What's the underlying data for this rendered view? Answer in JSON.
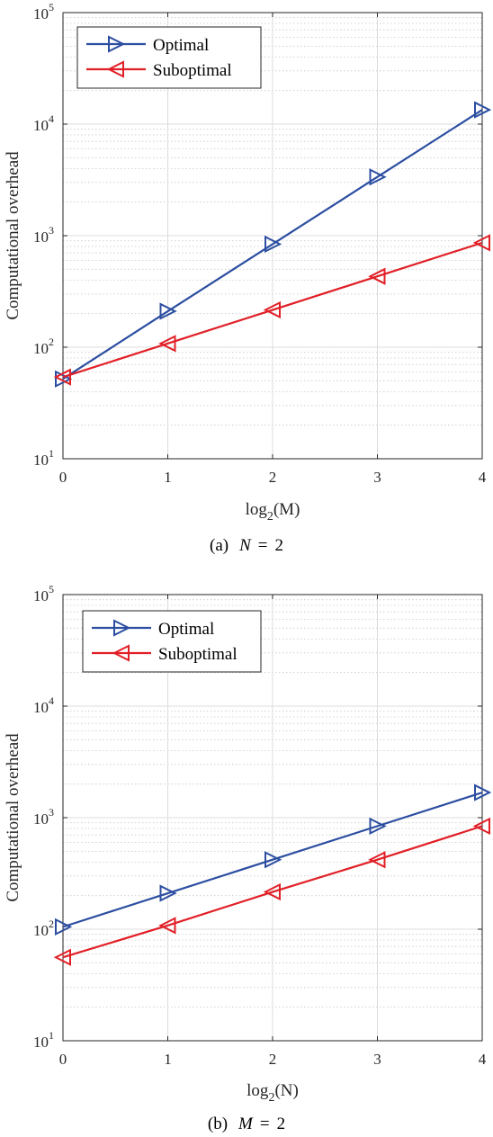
{
  "chart_data": [
    {
      "type": "line",
      "caption": "(a)",
      "caption_math": {
        "symbol": "N",
        "op": "=",
        "value": "2"
      },
      "xlabel": "log2(M)",
      "xlabel_parts": {
        "base": "log",
        "sub": "2",
        "arg": "(M)"
      },
      "ylabel": "Computational overhead",
      "xlim": [
        0,
        4
      ],
      "ylim": [
        10,
        100000
      ],
      "yscale": "log",
      "grid": true,
      "legend_position": "top-left",
      "x": [
        0,
        1,
        2,
        3,
        4
      ],
      "x_ticks": [
        "0",
        "1",
        "2",
        "3",
        "4"
      ],
      "y_ticks": [
        {
          "base": "10",
          "exp": "1"
        },
        {
          "base": "10",
          "exp": "2"
        },
        {
          "base": "10",
          "exp": "3"
        },
        {
          "base": "10",
          "exp": "4"
        },
        {
          "base": "10",
          "exp": "5"
        }
      ],
      "series": [
        {
          "name": "Optimal",
          "color": "#2c4ea1",
          "marker": "triangle-right",
          "values": [
            52,
            210,
            840,
            3360,
            13440
          ]
        },
        {
          "name": "Suboptimal",
          "color": "#e11f26",
          "marker": "triangle-left",
          "values": [
            54,
            108,
            216,
            432,
            864
          ]
        }
      ]
    },
    {
      "type": "line",
      "caption": "(b)",
      "caption_math": {
        "symbol": "M",
        "op": "=",
        "value": "2"
      },
      "xlabel": "log2(N)",
      "xlabel_parts": {
        "base": "log",
        "sub": "2",
        "arg": "(N)"
      },
      "ylabel": "Computational overhead",
      "xlim": [
        0,
        4
      ],
      "ylim": [
        10,
        100000
      ],
      "yscale": "log",
      "grid": true,
      "legend_position": "top-left",
      "x": [
        0,
        1,
        2,
        3,
        4
      ],
      "x_ticks": [
        "0",
        "1",
        "2",
        "3",
        "4"
      ],
      "y_ticks": [
        {
          "base": "10",
          "exp": "1"
        },
        {
          "base": "10",
          "exp": "2"
        },
        {
          "base": "10",
          "exp": "3"
        },
        {
          "base": "10",
          "exp": "4"
        },
        {
          "base": "10",
          "exp": "5"
        }
      ],
      "series": [
        {
          "name": "Optimal",
          "color": "#2c4ea1",
          "marker": "triangle-right",
          "values": [
            105,
            210,
            420,
            840,
            1680
          ]
        },
        {
          "name": "Suboptimal",
          "color": "#e11f26",
          "marker": "triangle-left",
          "values": [
            56,
            108,
            216,
            420,
            840
          ]
        }
      ]
    }
  ]
}
